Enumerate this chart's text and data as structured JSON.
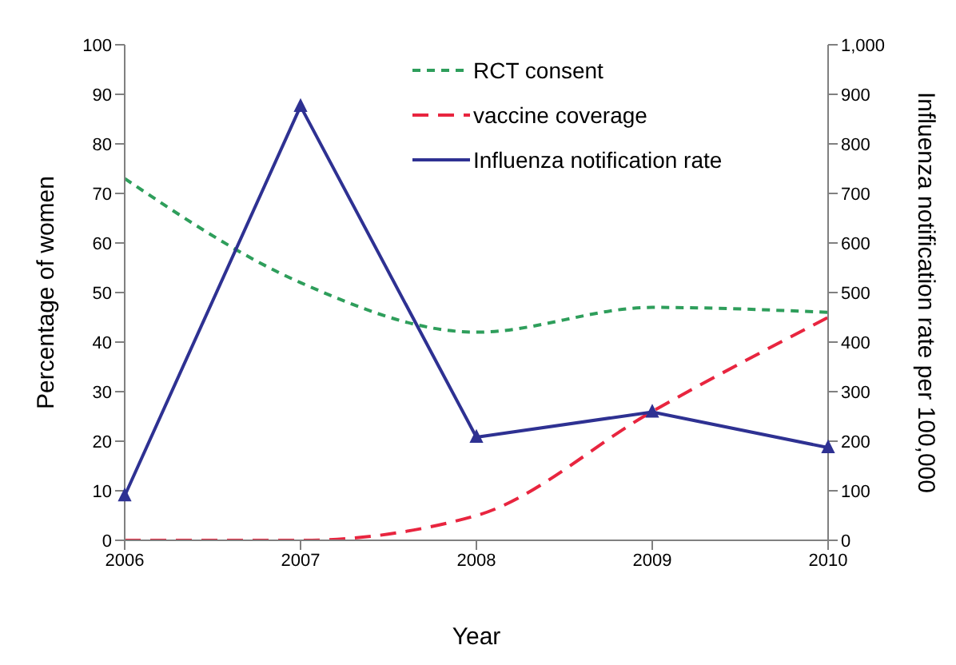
{
  "chart_data": {
    "type": "line",
    "xlabel": "Year",
    "ylabel": "Percentage of women",
    "y2label": "Influenza notification rate per 100,000",
    "categories": [
      "2006",
      "2007",
      "2008",
      "2009",
      "2010"
    ],
    "series": [
      {
        "name": "RCT consent",
        "color": "#2e9e5b",
        "values": [
          73,
          52,
          42,
          47,
          46
        ],
        "line_style": "dotted",
        "marker": "none"
      },
      {
        "name": "vaccine coverage",
        "color": "#e8253f",
        "values": [
          0,
          0,
          5,
          26,
          45
        ],
        "line_style": "dashed",
        "marker": "none"
      },
      {
        "name": "Influenza notification rate",
        "color": "#2e3192",
        "values": [
          90,
          876,
          208,
          259,
          187
        ],
        "axis": "y2",
        "line_style": "solid",
        "marker": "triangle"
      }
    ],
    "ylim": [
      0,
      100
    ],
    "yticks": [
      0,
      10,
      20,
      30,
      40,
      50,
      60,
      70,
      80,
      90,
      100
    ],
    "y2lim": [
      0,
      1000
    ],
    "y2ticks": [
      0,
      100,
      200,
      300,
      400,
      500,
      600,
      700,
      800,
      900,
      {
        "value": 1000,
        "label": "1,000"
      }
    ],
    "grid": false,
    "legend": "top"
  }
}
